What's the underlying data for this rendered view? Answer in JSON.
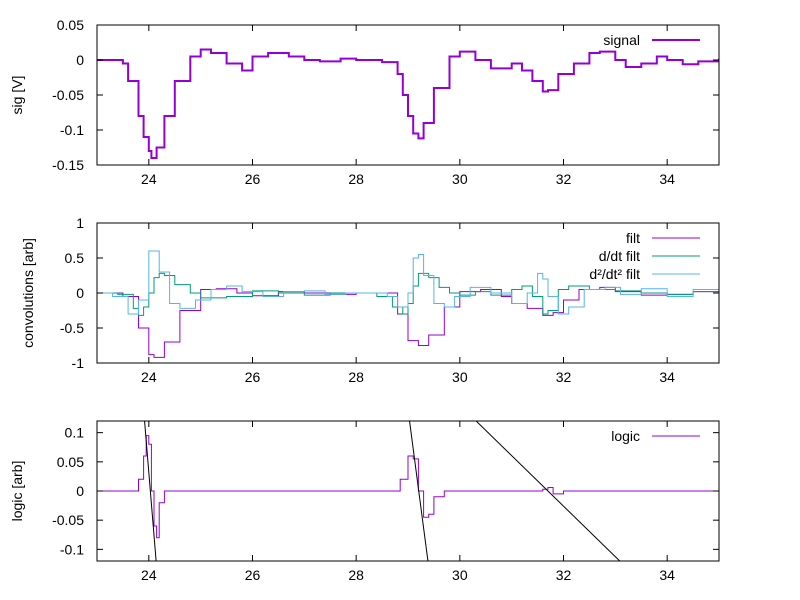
{
  "chart_data": [
    {
      "type": "line",
      "ylabel": "sig [V]",
      "xlim": [
        23,
        35
      ],
      "ylim": [
        -0.15,
        0.05
      ],
      "xticks": [
        "24",
        "26",
        "28",
        "30",
        "32",
        "34"
      ],
      "yticks": [
        "0.05",
        "0",
        "-0.05",
        "-0.1",
        "-0.15"
      ],
      "legend": "top-right",
      "series": [
        {
          "name": "signal",
          "color": "#9400d3",
          "x": [
            23.0,
            23.5,
            23.6,
            23.8,
            23.9,
            24.0,
            24.05,
            24.15,
            24.3,
            24.5,
            24.8,
            25.0,
            25.2,
            25.5,
            25.8,
            26.0,
            26.3,
            26.7,
            27.0,
            27.3,
            27.7,
            28.0,
            28.5,
            28.8,
            28.9,
            29.0,
            29.1,
            29.2,
            29.3,
            29.5,
            29.8,
            30.0,
            30.3,
            30.6,
            31.0,
            31.2,
            31.4,
            31.6,
            31.7,
            31.9,
            32.2,
            32.5,
            32.7,
            33.0,
            33.2,
            33.5,
            33.8,
            34.0,
            34.3,
            34.6,
            35.0
          ],
          "y": [
            0.0,
            -0.005,
            -0.03,
            -0.08,
            -0.11,
            -0.13,
            -0.14,
            -0.125,
            -0.08,
            -0.03,
            0.005,
            0.015,
            0.01,
            -0.005,
            -0.015,
            0.005,
            0.01,
            0.005,
            0.0,
            -0.002,
            0.002,
            0.0,
            -0.003,
            -0.02,
            -0.05,
            -0.08,
            -0.105,
            -0.112,
            -0.09,
            -0.04,
            0.005,
            0.012,
            0.0,
            -0.012,
            -0.005,
            -0.015,
            -0.03,
            -0.045,
            -0.043,
            -0.02,
            -0.005,
            0.01,
            0.012,
            0.0,
            -0.01,
            -0.005,
            0.005,
            0.0,
            -0.006,
            -0.002,
            0.002
          ]
        }
      ]
    },
    {
      "type": "line",
      "ylabel": "convolutions [arb]",
      "xlim": [
        23,
        35
      ],
      "ylim": [
        -1,
        1
      ],
      "xticks": [
        "24",
        "26",
        "28",
        "30",
        "32",
        "34"
      ],
      "yticks": [
        "1",
        "0.5",
        "0",
        "-0.5",
        "-1"
      ],
      "legend": "top-right",
      "series": [
        {
          "name": "filt",
          "color": "#9400d3",
          "x": [
            23.0,
            23.5,
            23.8,
            24.0,
            24.1,
            24.3,
            24.6,
            25.0,
            25.3,
            25.7,
            26.0,
            26.5,
            27.0,
            27.5,
            28.0,
            28.5,
            28.8,
            29.0,
            29.2,
            29.4,
            29.7,
            30.0,
            30.4,
            30.8,
            31.0,
            31.3,
            31.6,
            31.8,
            32.0,
            32.3,
            32.7,
            33.0,
            33.5,
            34.0,
            34.5,
            35.0
          ],
          "y": [
            0.0,
            -0.05,
            -0.5,
            -0.88,
            -0.92,
            -0.7,
            -0.25,
            0.05,
            0.06,
            0.0,
            -0.04,
            0.02,
            0.0,
            -0.02,
            0.0,
            0.0,
            -0.3,
            -0.68,
            -0.75,
            -0.6,
            -0.2,
            0.02,
            0.05,
            -0.05,
            -0.15,
            -0.22,
            -0.32,
            -0.28,
            -0.1,
            0.05,
            0.08,
            0.02,
            -0.03,
            -0.02,
            0.02,
            0.0
          ]
        },
        {
          "name": "d/dt filt",
          "color": "#009e73",
          "x": [
            23.0,
            23.4,
            23.7,
            23.8,
            23.9,
            24.0,
            24.1,
            24.2,
            24.3,
            24.5,
            24.8,
            25.0,
            25.5,
            26.0,
            26.5,
            27.0,
            27.5,
            28.0,
            28.4,
            28.7,
            28.9,
            29.0,
            29.1,
            29.2,
            29.4,
            29.6,
            29.8,
            30.0,
            30.3,
            30.6,
            31.0,
            31.2,
            31.4,
            31.6,
            31.7,
            31.9,
            32.1,
            32.5,
            33.0,
            33.5,
            34.0,
            34.5,
            35.0
          ],
          "y": [
            0.0,
            -0.02,
            -0.22,
            -0.32,
            -0.2,
            0.0,
            0.22,
            0.28,
            0.25,
            0.12,
            0.0,
            -0.07,
            -0.05,
            0.03,
            0.0,
            -0.03,
            0.0,
            0.0,
            -0.05,
            -0.2,
            -0.3,
            -0.15,
            0.1,
            0.28,
            0.22,
            0.08,
            0.0,
            -0.03,
            0.02,
            -0.03,
            0.05,
            0.1,
            -0.05,
            -0.3,
            -0.25,
            0.05,
            0.1,
            0.05,
            0.03,
            0.0,
            -0.02,
            0.02,
            0.0
          ]
        },
        {
          "name": "d²/dt² filt",
          "color": "#56b4e9",
          "x": [
            23.0,
            23.3,
            23.6,
            23.8,
            24.0,
            24.2,
            24.4,
            24.6,
            24.9,
            25.2,
            25.5,
            25.8,
            26.2,
            26.6,
            27.0,
            27.4,
            27.8,
            28.2,
            28.6,
            28.8,
            29.0,
            29.1,
            29.2,
            29.3,
            29.5,
            29.7,
            29.9,
            30.2,
            30.6,
            31.0,
            31.3,
            31.5,
            31.6,
            31.7,
            31.9,
            32.1,
            32.4,
            32.8,
            33.1,
            33.5,
            34.0,
            34.5,
            35.0
          ],
          "y": [
            0.0,
            -0.05,
            -0.3,
            -0.1,
            0.6,
            0.3,
            -0.15,
            -0.22,
            -0.1,
            0.05,
            0.1,
            0.02,
            -0.05,
            0.02,
            0.03,
            -0.02,
            0.0,
            0.0,
            -0.05,
            -0.2,
            0.0,
            0.5,
            0.55,
            0.25,
            -0.15,
            -0.2,
            -0.05,
            0.08,
            0.0,
            -0.15,
            0.0,
            0.28,
            0.2,
            -0.05,
            -0.3,
            -0.2,
            0.05,
            0.08,
            -0.02,
            0.06,
            -0.05,
            0.05,
            -0.03
          ]
        }
      ]
    },
    {
      "type": "line",
      "ylabel": "logic [arb]",
      "xlim": [
        23,
        35
      ],
      "ylim": [
        -0.12,
        0.12
      ],
      "xticks": [
        "24",
        "26",
        "28",
        "30",
        "32",
        "34"
      ],
      "yticks": [
        "0.1",
        "0.05",
        "0",
        "-0.05",
        "-0.1"
      ],
      "legend": "top-right",
      "series": [
        {
          "name": "logic",
          "color": "#9400d3",
          "x": [
            23.0,
            23.7,
            23.8,
            23.9,
            23.95,
            24.0,
            24.05,
            24.1,
            24.15,
            24.2,
            24.3,
            24.5,
            28.7,
            28.85,
            29.0,
            29.1,
            29.2,
            29.3,
            29.4,
            29.5,
            29.7,
            31.5,
            31.6,
            31.7,
            31.8,
            32.0,
            35.0
          ],
          "y": [
            0.0,
            0.0,
            0.02,
            0.06,
            0.095,
            0.08,
            0.0,
            -0.06,
            -0.08,
            -0.02,
            0.0,
            0.0,
            0.0,
            0.02,
            0.06,
            0.055,
            0.0,
            -0.045,
            -0.04,
            -0.01,
            0.0,
            0.0,
            0.003,
            0.006,
            -0.005,
            0.0,
            0.0
          ]
        },
        {
          "name": "",
          "color": "#000000",
          "x": [
            23.9,
            24.15
          ],
          "y": [
            0.14,
            -0.13
          ]
        },
        {
          "name": "",
          "color": "#000000",
          "x": [
            29.0,
            29.4
          ],
          "y": [
            0.14,
            -0.13
          ]
        },
        {
          "name": "",
          "color": "#000000",
          "x": [
            30.2,
            33.2
          ],
          "y": [
            0.13,
            -0.13
          ]
        }
      ]
    }
  ]
}
